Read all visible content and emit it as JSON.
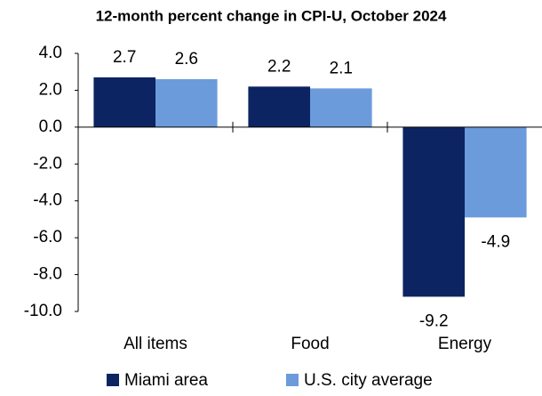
{
  "chart_data": {
    "type": "bar",
    "title": "12-month percent change in CPI-U, October 2024",
    "categories": [
      "All items",
      "Food",
      "Energy"
    ],
    "series": [
      {
        "name": "Miami area",
        "color": "#0c2461",
        "values": [
          2.7,
          2.2,
          -9.2
        ]
      },
      {
        "name": "U.S. city average",
        "color": "#6b9bdb",
        "values": [
          2.6,
          2.1,
          -4.9
        ]
      }
    ],
    "ylim": [
      -10,
      4
    ],
    "yticks": [
      {
        "value": -10,
        "label": "-10.0"
      },
      {
        "value": -8,
        "label": "-8.0"
      },
      {
        "value": -6,
        "label": "-6.0"
      },
      {
        "value": -4,
        "label": "-4.0"
      },
      {
        "value": -2,
        "label": "-2.0"
      },
      {
        "value": 0,
        "label": "0.0"
      },
      {
        "value": 2,
        "label": "2.0"
      },
      {
        "value": 4,
        "label": "4.0"
      }
    ],
    "grid": false
  }
}
